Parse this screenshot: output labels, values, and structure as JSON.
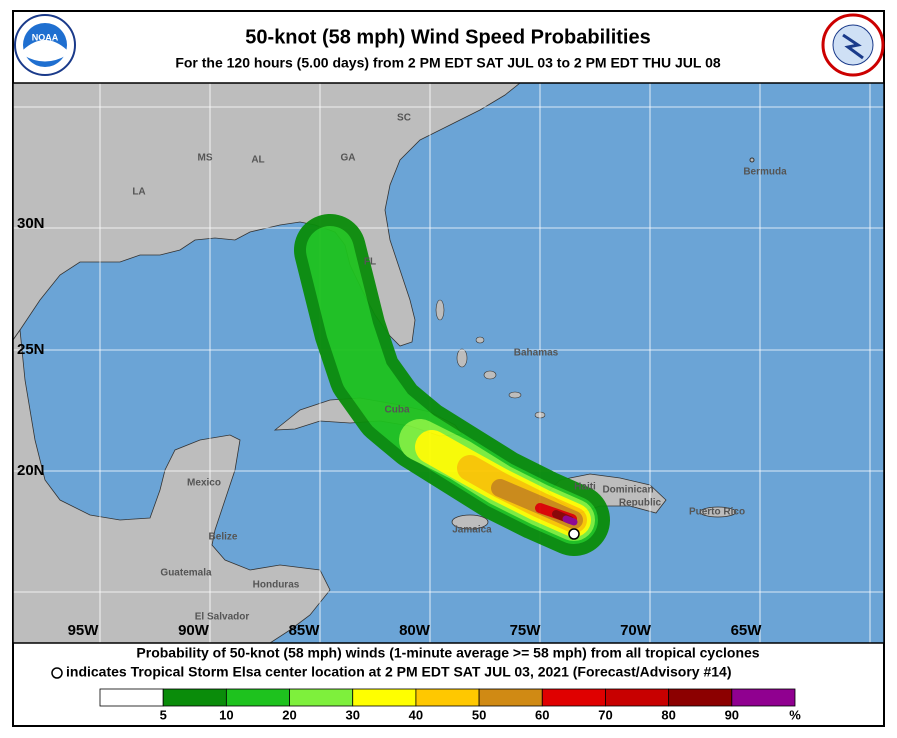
{
  "header": {
    "title": "50-knot (58 mph) Wind Speed Probabilities",
    "subtitle": "For the 120 hours (5.00 days) from 2 PM EDT SAT JUL 03 to 2 PM EDT THU JUL 08"
  },
  "logo": {
    "left": "NOAA"
  },
  "map": {
    "lon_labels": [
      "95W",
      "90W",
      "85W",
      "80W",
      "75W",
      "70W",
      "65W"
    ],
    "lat_labels": [
      "30N",
      "25N",
      "20N"
    ],
    "places": [
      "MS",
      "AL",
      "GA",
      "SC",
      "LA",
      "FL",
      "Bahamas",
      "Cuba",
      "Haiti",
      "Dominican",
      "Republic",
      "Jamaica",
      "Puerto Rico",
      "Mexico",
      "Belize",
      "Guatemala",
      "Honduras",
      "El Salvador",
      "Bermuda"
    ]
  },
  "footer": {
    "line1": "Probability of 50-knot (58 mph) winds (1-minute average >= 58 mph) from all tropical cyclones",
    "line2": "indicates Tropical Storm Elsa center location at 2 PM EDT SAT JUL 03, 2021 (Forecast/Advisory #14)"
  },
  "legend": {
    "colors": [
      "#ffffff",
      "#0a8c0a",
      "#1ec21e",
      "#7ef03c",
      "#ffff00",
      "#ffc800",
      "#d08a14",
      "#e00000",
      "#c80000",
      "#8c0000",
      "#900090"
    ],
    "labels": [
      "5",
      "10",
      "20",
      "30",
      "40",
      "50",
      "60",
      "70",
      "80",
      "90",
      "%"
    ]
  }
}
